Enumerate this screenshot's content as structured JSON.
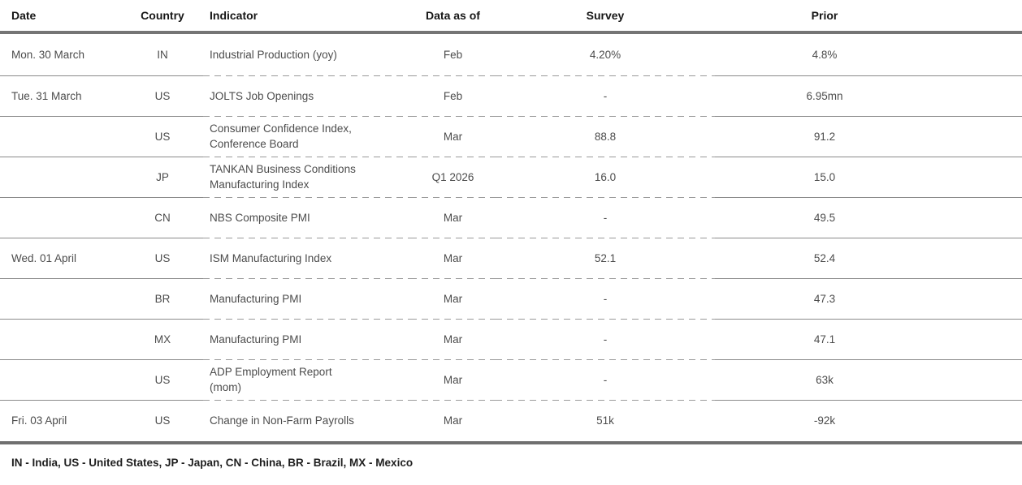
{
  "table": {
    "columns": [
      {
        "key": "date",
        "label": "Date"
      },
      {
        "key": "country",
        "label": "Country"
      },
      {
        "key": "indicator",
        "label": "Indicator"
      },
      {
        "key": "data_as_of",
        "label": "Data as of"
      },
      {
        "key": "survey",
        "label": "Survey"
      },
      {
        "key": "prior",
        "label": "Prior"
      }
    ],
    "rows": [
      {
        "date": "Mon. 30 March",
        "country": "IN",
        "indicator": "Industrial Production (yoy)",
        "data_as_of": "Feb",
        "survey": "4.20%",
        "prior": "4.8%"
      },
      {
        "date": "Tue. 31 March",
        "country": "US",
        "indicator": "JOLTS Job Openings",
        "data_as_of": "Feb",
        "survey": "-",
        "prior": "6.95mn"
      },
      {
        "date": "",
        "country": "US",
        "indicator": "Consumer Confidence Index,\nConference Board",
        "data_as_of": "Mar",
        "survey": "88.8",
        "prior": "91.2"
      },
      {
        "date": "",
        "country": "JP",
        "indicator": "TANKAN Business Conditions\nManufacturing Index",
        "data_as_of": "Q1 2026",
        "survey": "16.0",
        "prior": "15.0"
      },
      {
        "date": "",
        "country": "CN",
        "indicator": "NBS Composite PMI",
        "data_as_of": "Mar",
        "survey": "-",
        "prior": "49.5"
      },
      {
        "date": "Wed. 01 April",
        "country": "US",
        "indicator": "ISM Manufacturing Index",
        "data_as_of": "Mar",
        "survey": "52.1",
        "prior": "52.4"
      },
      {
        "date": "",
        "country": "BR",
        "indicator": "Manufacturing PMI",
        "data_as_of": "Mar",
        "survey": "-",
        "prior": "47.3"
      },
      {
        "date": "",
        "country": "MX",
        "indicator": "Manufacturing PMI",
        "data_as_of": "Mar",
        "survey": "-",
        "prior": "47.1"
      },
      {
        "date": "",
        "country": "US",
        "indicator": "ADP Employment Report\n(mom)",
        "data_as_of": "Mar",
        "survey": "-",
        "prior": "63k"
      },
      {
        "date": "Fri. 03 April",
        "country": "US",
        "indicator": "Change in Non-Farm Payrolls",
        "data_as_of": "Mar",
        "survey": "51k",
        "prior": "-92k"
      }
    ]
  },
  "footer": {
    "legend": "IN - India, US - United States, JP - Japan, CN - China, BR - Brazil, MX - Mexico"
  },
  "colors": {
    "heading_text": "#161616",
    "body_text": "#4c4c4c",
    "thick_rule": "#6f6f6f",
    "thin_rule_solid": "#8a8a8a",
    "thin_rule_dash": "#9a9a9a"
  }
}
